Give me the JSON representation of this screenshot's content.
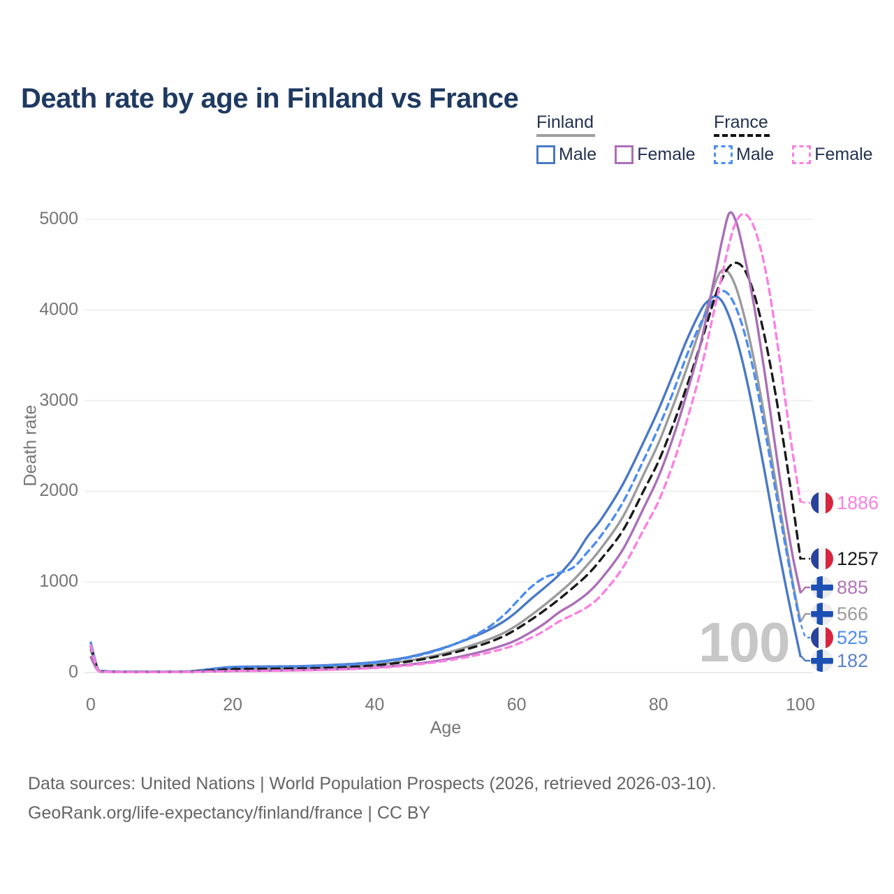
{
  "title": "Death rate by age in Finland vs France",
  "legend": {
    "finland": {
      "label": "Finland",
      "line_style": "solid",
      "line_color": "#9e9e9e",
      "male": {
        "label": "Male",
        "color": "#4a79c4"
      },
      "female": {
        "label": "Female",
        "color": "#aa6fb6"
      }
    },
    "france": {
      "label": "France",
      "line_style": "dashed",
      "line_color": "#111111",
      "male": {
        "label": "Male",
        "color": "#4b8df2"
      },
      "female": {
        "label": "Female",
        "color": "#fb80e2"
      }
    }
  },
  "watermark": "100",
  "footer": {
    "line1": "Data sources: United Nations | World Population Prospects (2026, retrieved 2026-03-10).",
    "line2": "GeoRank.org/life-expectancy/finland/france | CC BY"
  },
  "chart_data": {
    "type": "line",
    "title": "Death rate by age in Finland vs France",
    "xlabel": "Age",
    "ylabel": "Death rate",
    "xlim": [
      0,
      100
    ],
    "ylim": [
      0,
      5000
    ],
    "x_ticks": [
      0,
      20,
      40,
      60,
      80,
      100
    ],
    "y_ticks": [
      0,
      1000,
      2000,
      3000,
      4000,
      5000
    ],
    "grid": "horizontal",
    "legend_position": "top-right",
    "series": [
      {
        "key": "finland-both",
        "name": "Finland (both sexes)",
        "color": "#9b9b9b",
        "dash": null,
        "width": 3.4,
        "points": [
          [
            0,
            250
          ],
          [
            1,
            32
          ],
          [
            2,
            13
          ],
          [
            5,
            9
          ],
          [
            10,
            9
          ],
          [
            14,
            12
          ],
          [
            17,
            28
          ],
          [
            20,
            42
          ],
          [
            25,
            47
          ],
          [
            30,
            50
          ],
          [
            35,
            62
          ],
          [
            40,
            86
          ],
          [
            45,
            135
          ],
          [
            50,
            215
          ],
          [
            55,
            335
          ],
          [
            58,
            430
          ],
          [
            60,
            520
          ],
          [
            62,
            630
          ],
          [
            64,
            750
          ],
          [
            66,
            880
          ],
          [
            68,
            1020
          ],
          [
            70,
            1190
          ],
          [
            72,
            1380
          ],
          [
            75,
            1720
          ],
          [
            78,
            2200
          ],
          [
            80,
            2530
          ],
          [
            82,
            2930
          ],
          [
            84,
            3360
          ],
          [
            86,
            3830
          ],
          [
            88,
            4300
          ],
          [
            89,
            4440
          ],
          [
            90,
            4400
          ],
          [
            91,
            4230
          ],
          [
            92,
            3960
          ],
          [
            93,
            3620
          ],
          [
            94,
            3230
          ],
          [
            95,
            2800
          ],
          [
            96,
            2340
          ],
          [
            97,
            1870
          ],
          [
            98,
            1410
          ],
          [
            99,
            960
          ],
          [
            100,
            566
          ]
        ]
      },
      {
        "key": "finland-male",
        "name": "Finland Male",
        "color": "#4a79c4",
        "dash": null,
        "width": 3.4,
        "points": [
          [
            0,
            330
          ],
          [
            1,
            40
          ],
          [
            2,
            16
          ],
          [
            5,
            10
          ],
          [
            10,
            10
          ],
          [
            14,
            14
          ],
          [
            17,
            40
          ],
          [
            20,
            62
          ],
          [
            25,
            68
          ],
          [
            30,
            72
          ],
          [
            35,
            88
          ],
          [
            40,
            115
          ],
          [
            45,
            175
          ],
          [
            50,
            280
          ],
          [
            55,
            430
          ],
          [
            58,
            555
          ],
          [
            60,
            670
          ],
          [
            62,
            810
          ],
          [
            64,
            940
          ],
          [
            66,
            1080
          ],
          [
            68,
            1260
          ],
          [
            70,
            1500
          ],
          [
            72,
            1700
          ],
          [
            75,
            2080
          ],
          [
            78,
            2560
          ],
          [
            80,
            2900
          ],
          [
            82,
            3280
          ],
          [
            84,
            3670
          ],
          [
            86,
            4000
          ],
          [
            87,
            4100
          ],
          [
            88,
            4150
          ],
          [
            89,
            4090
          ],
          [
            90,
            3920
          ],
          [
            91,
            3680
          ],
          [
            92,
            3380
          ],
          [
            93,
            3020
          ],
          [
            94,
            2620
          ],
          [
            95,
            2200
          ],
          [
            96,
            1760
          ],
          [
            97,
            1330
          ],
          [
            98,
            930
          ],
          [
            99,
            550
          ],
          [
            100,
            182
          ]
        ]
      },
      {
        "key": "france-male",
        "name": "France Male",
        "color": "#4b8df2",
        "dash": "9 7",
        "width": 3.4,
        "points": [
          [
            0,
            320
          ],
          [
            1,
            38
          ],
          [
            2,
            15
          ],
          [
            5,
            9
          ],
          [
            10,
            8
          ],
          [
            14,
            12
          ],
          [
            17,
            36
          ],
          [
            20,
            56
          ],
          [
            25,
            62
          ],
          [
            30,
            66
          ],
          [
            35,
            82
          ],
          [
            40,
            110
          ],
          [
            45,
            168
          ],
          [
            50,
            275
          ],
          [
            55,
            450
          ],
          [
            58,
            620
          ],
          [
            60,
            780
          ],
          [
            62,
            940
          ],
          [
            64,
            1050
          ],
          [
            66,
            1100
          ],
          [
            68,
            1160
          ],
          [
            70,
            1330
          ],
          [
            72,
            1520
          ],
          [
            75,
            1880
          ],
          [
            78,
            2360
          ],
          [
            80,
            2700
          ],
          [
            82,
            3080
          ],
          [
            84,
            3500
          ],
          [
            86,
            3860
          ],
          [
            88,
            4150
          ],
          [
            89,
            4210
          ],
          [
            90,
            4160
          ],
          [
            91,
            4010
          ],
          [
            92,
            3780
          ],
          [
            93,
            3470
          ],
          [
            94,
            3100
          ],
          [
            95,
            2680
          ],
          [
            96,
            2230
          ],
          [
            97,
            1790
          ],
          [
            98,
            1350
          ],
          [
            99,
            930
          ],
          [
            100,
            525
          ]
        ]
      },
      {
        "key": "france-both",
        "name": "France (both sexes)",
        "color": "#1a1a1a",
        "dash": "11 8",
        "width": 3.4,
        "points": [
          [
            0,
            290
          ],
          [
            1,
            30
          ],
          [
            2,
            12
          ],
          [
            5,
            8
          ],
          [
            10,
            8
          ],
          [
            14,
            11
          ],
          [
            17,
            25
          ],
          [
            20,
            38
          ],
          [
            25,
            43
          ],
          [
            30,
            46
          ],
          [
            35,
            57
          ],
          [
            40,
            80
          ],
          [
            45,
            125
          ],
          [
            50,
            198
          ],
          [
            55,
            305
          ],
          [
            58,
            395
          ],
          [
            60,
            480
          ],
          [
            62,
            580
          ],
          [
            64,
            690
          ],
          [
            66,
            810
          ],
          [
            68,
            940
          ],
          [
            70,
            1080
          ],
          [
            72,
            1260
          ],
          [
            75,
            1570
          ],
          [
            78,
            2020
          ],
          [
            80,
            2330
          ],
          [
            82,
            2720
          ],
          [
            84,
            3160
          ],
          [
            86,
            3640
          ],
          [
            88,
            4150
          ],
          [
            89,
            4350
          ],
          [
            90,
            4480
          ],
          [
            91,
            4520
          ],
          [
            92,
            4460
          ],
          [
            93,
            4290
          ],
          [
            94,
            4030
          ],
          [
            95,
            3690
          ],
          [
            96,
            3290
          ],
          [
            97,
            2840
          ],
          [
            98,
            2350
          ],
          [
            99,
            1820
          ],
          [
            100,
            1257
          ]
        ]
      },
      {
        "key": "finland-female",
        "name": "Finland Female",
        "color": "#aa6fb6",
        "dash": null,
        "width": 3.4,
        "points": [
          [
            0,
            170
          ],
          [
            1,
            22
          ],
          [
            2,
            9
          ],
          [
            5,
            6
          ],
          [
            10,
            6
          ],
          [
            14,
            8
          ],
          [
            17,
            13
          ],
          [
            20,
            17
          ],
          [
            25,
            21
          ],
          [
            30,
            27
          ],
          [
            35,
            37
          ],
          [
            40,
            56
          ],
          [
            45,
            90
          ],
          [
            50,
            145
          ],
          [
            55,
            230
          ],
          [
            58,
            298
          ],
          [
            60,
            360
          ],
          [
            62,
            445
          ],
          [
            64,
            545
          ],
          [
            66,
            665
          ],
          [
            68,
            760
          ],
          [
            70,
            875
          ],
          [
            72,
            1040
          ],
          [
            75,
            1360
          ],
          [
            78,
            1830
          ],
          [
            80,
            2160
          ],
          [
            82,
            2580
          ],
          [
            84,
            3080
          ],
          [
            86,
            3650
          ],
          [
            88,
            4400
          ],
          [
            89,
            4780
          ],
          [
            90,
            5070
          ],
          [
            91,
            4960
          ],
          [
            92,
            4640
          ],
          [
            93,
            4250
          ],
          [
            94,
            3800
          ],
          [
            95,
            3290
          ],
          [
            96,
            2740
          ],
          [
            97,
            2200
          ],
          [
            98,
            1690
          ],
          [
            99,
            1250
          ],
          [
            100,
            885
          ]
        ]
      },
      {
        "key": "france-female",
        "name": "France Female",
        "color": "#fb80e2",
        "dash": "9 7",
        "width": 3.4,
        "points": [
          [
            0,
            300
          ],
          [
            1,
            26
          ],
          [
            2,
            10
          ],
          [
            5,
            6
          ],
          [
            10,
            6
          ],
          [
            14,
            8
          ],
          [
            17,
            12
          ],
          [
            20,
            16
          ],
          [
            25,
            20
          ],
          [
            30,
            25
          ],
          [
            35,
            34
          ],
          [
            40,
            51
          ],
          [
            45,
            81
          ],
          [
            50,
            130
          ],
          [
            55,
            202
          ],
          [
            58,
            260
          ],
          [
            60,
            312
          ],
          [
            62,
            382
          ],
          [
            64,
            465
          ],
          [
            66,
            565
          ],
          [
            68,
            640
          ],
          [
            70,
            725
          ],
          [
            72,
            860
          ],
          [
            75,
            1160
          ],
          [
            78,
            1590
          ],
          [
            80,
            1890
          ],
          [
            82,
            2290
          ],
          [
            84,
            2780
          ],
          [
            86,
            3350
          ],
          [
            88,
            4050
          ],
          [
            90,
            4740
          ],
          [
            91,
            4980
          ],
          [
            92,
            5060
          ],
          [
            93,
            4990
          ],
          [
            94,
            4790
          ],
          [
            95,
            4470
          ],
          [
            96,
            4030
          ],
          [
            97,
            3500
          ],
          [
            98,
            2930
          ],
          [
            99,
            2380
          ],
          [
            100,
            1886
          ]
        ]
      }
    ],
    "end_labels": [
      {
        "text": "1886",
        "value": 1886,
        "flag": "france",
        "series": "france-female",
        "color": "#fb80e2",
        "dashed": true
      },
      {
        "text": "1257",
        "value": 1257,
        "flag": "france",
        "series": "france-both",
        "color": "#1a1a1a",
        "dashed": true
      },
      {
        "text": "885",
        "value": 885,
        "flag": "finland",
        "series": "finland-female",
        "color": "#b175b8",
        "dashed": false
      },
      {
        "text": "566",
        "value": 566,
        "flag": "finland",
        "series": "finland-both",
        "color": "#9b9b9b",
        "dashed": false
      },
      {
        "text": "525",
        "value": 525,
        "flag": "france",
        "series": "france-male",
        "color": "#4b8df2",
        "dashed": true
      },
      {
        "text": "182",
        "value": 182,
        "flag": "finland",
        "series": "finland-male",
        "color": "#5b82cd",
        "dashed": false
      }
    ]
  }
}
